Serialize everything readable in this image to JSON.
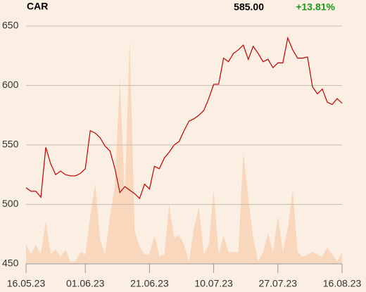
{
  "header": {
    "symbol": "CAR",
    "price": "585.00",
    "change": "+13.81%",
    "change_color": "#1a9a1a"
  },
  "chart_data": {
    "type": "line",
    "categories": [
      "16.05.23",
      null,
      null,
      null,
      null,
      null,
      null,
      null,
      null,
      null,
      null,
      null,
      "01.06.23",
      null,
      null,
      null,
      null,
      null,
      null,
      null,
      null,
      null,
      null,
      null,
      null,
      "21.06.23",
      null,
      null,
      null,
      null,
      null,
      null,
      null,
      null,
      null,
      null,
      null,
      null,
      "10.07.23",
      null,
      null,
      null,
      null,
      null,
      null,
      null,
      null,
      null,
      null,
      null,
      null,
      "27.07.23",
      null,
      null,
      null,
      null,
      null,
      null,
      null,
      null,
      null,
      null,
      null,
      null,
      "16.08.23"
    ],
    "series": [
      {
        "color": "#c00000",
        "values": [
          514,
          511,
          511,
          506,
          548,
          534,
          525,
          528,
          525,
          524,
          524,
          526,
          530,
          562,
          560,
          556,
          549,
          545,
          530,
          510,
          515,
          512,
          509,
          505,
          517,
          513,
          532,
          530,
          539,
          544,
          550,
          553,
          562,
          570,
          572,
          575,
          579,
          589,
          601,
          601,
          623,
          620,
          627,
          630,
          634,
          622,
          633,
          627,
          620,
          622,
          615,
          619,
          619,
          640,
          630,
          623,
          623,
          624,
          599,
          593,
          597,
          586,
          584,
          589,
          585
        ]
      },
      {
        "color": "#f9d7bd",
        "axis": "y2",
        "values": [
          8,
          4,
          8,
          4,
          18,
          4,
          6,
          3,
          6,
          1,
          1,
          5,
          4,
          20,
          34,
          10,
          4,
          20,
          33,
          78,
          29,
          94,
          14,
          7,
          4,
          4,
          12,
          3,
          4,
          25,
          11,
          12,
          8,
          1,
          15,
          24,
          4,
          8,
          31,
          4,
          12,
          5,
          5,
          5,
          47,
          28,
          11,
          1,
          5,
          13,
          5,
          20,
          5,
          15,
          31,
          5,
          3,
          4,
          5,
          4,
          3,
          7,
          4,
          1,
          5
        ]
      }
    ],
    "ylim": [
      450,
      650
    ],
    "yticks": [
      450,
      500,
      550,
      600,
      650
    ],
    "y2lim": [
      0,
      100
    ],
    "grid": true
  }
}
